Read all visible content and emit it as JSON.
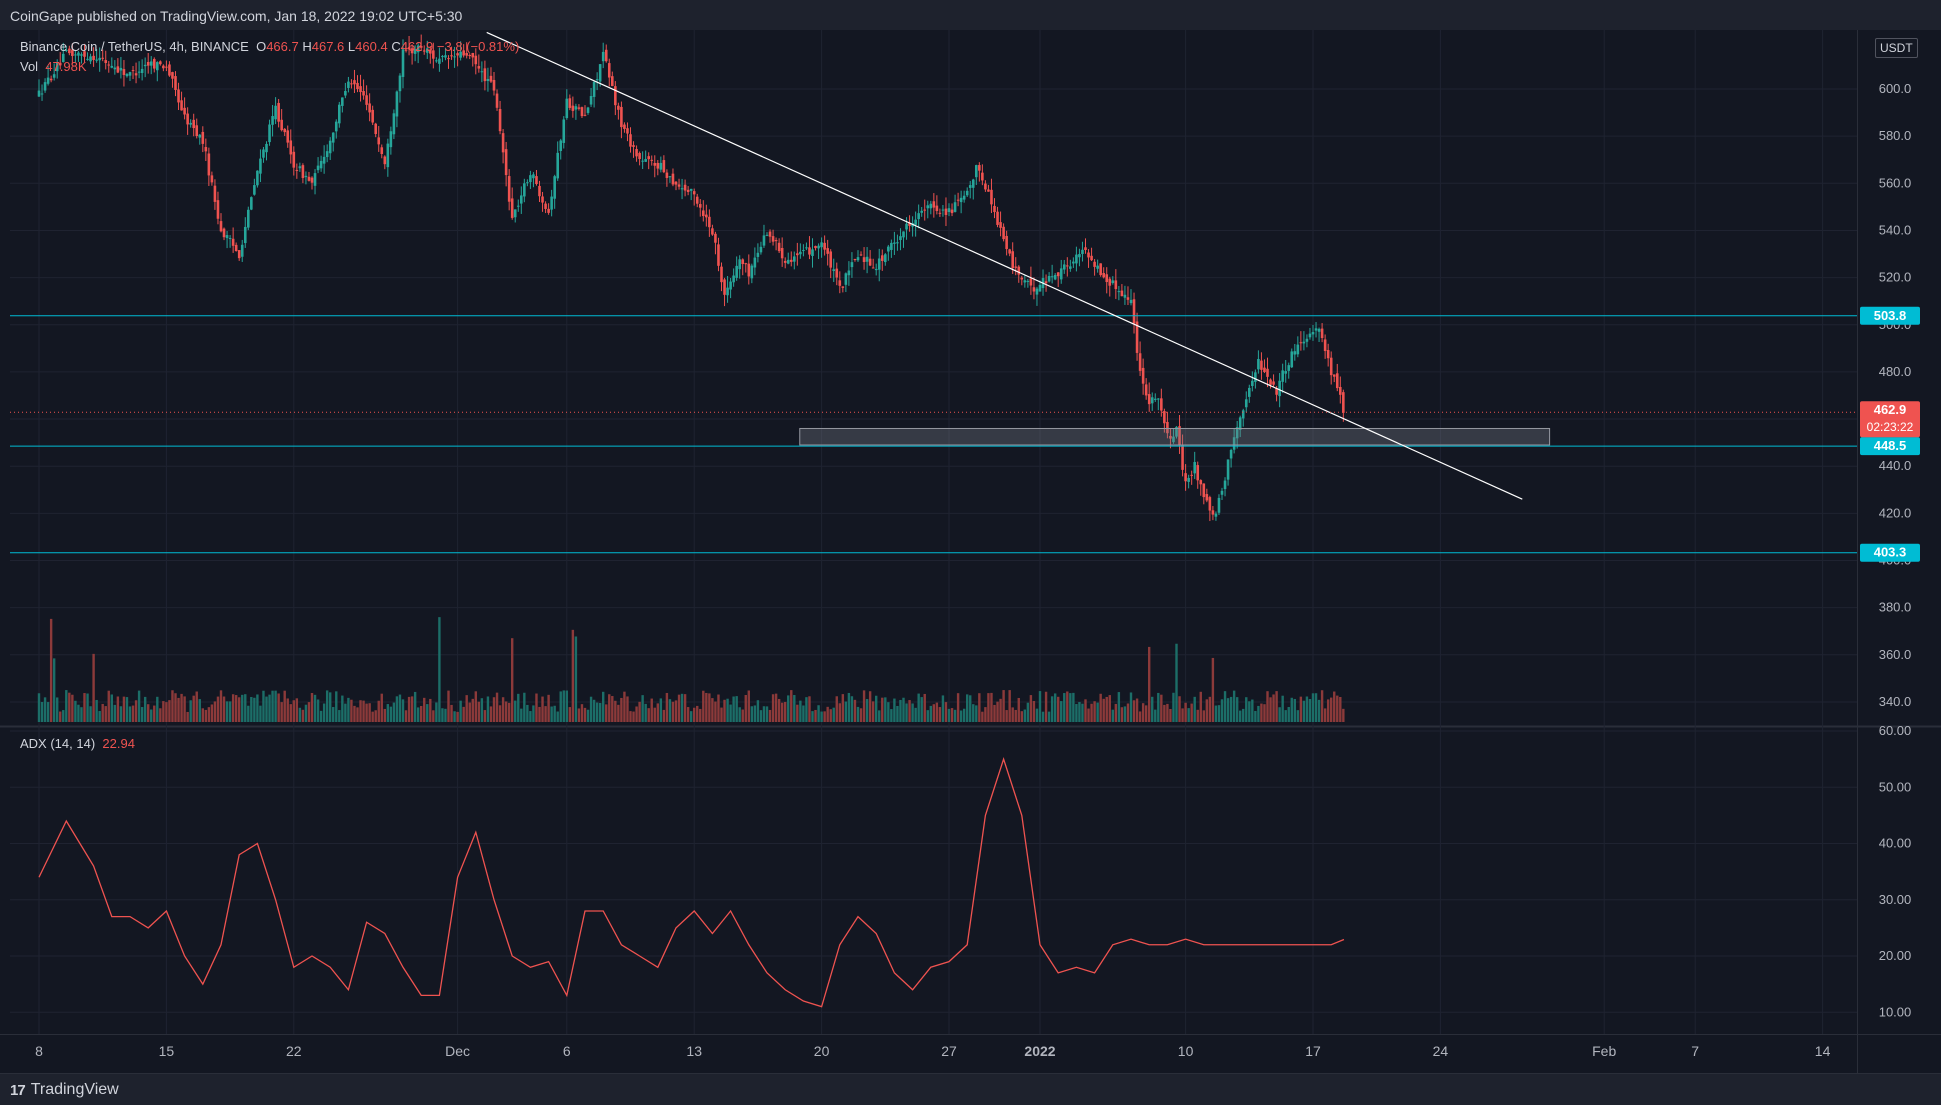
{
  "header": {
    "published": "CoinGape published on TradingView.com, Jan 18, 2022 19:02 UTC+5:30"
  },
  "legend": {
    "symbol": "Binance Coin / TetherUS, 4h, BINANCE",
    "o_label": "O",
    "o": "466.7",
    "h_label": "H",
    "h": "467.6",
    "l_label": "L",
    "l": "460.4",
    "c_label": "C",
    "c": "462.9",
    "change": "−3.8 (−0.81%)",
    "vol_label": "Vol",
    "vol": "47.98K",
    "adx_label": "ADX (14, 14)",
    "adx_value": "22.94"
  },
  "price_axis": {
    "unit": "USDT"
  },
  "badges": {
    "resistance": "503.8",
    "current_price": "462.9",
    "countdown": "02:23:22",
    "support1": "448.5",
    "support2": "403.3"
  },
  "footer": {
    "brand": "TradingView"
  },
  "colors": {
    "background": "#131722",
    "up": "#26a69a",
    "down": "#ef5350",
    "level_line": "#00bcd4",
    "trendline": "#ffffff",
    "adx": "#ef5350"
  },
  "chart_data": [
    {
      "type": "candlestick",
      "timeframe": "4h",
      "ylim": [
        330,
        620
      ],
      "y_ticks": [
        "600.0",
        "580.0",
        "560.0",
        "540.0",
        "520.0",
        "500.0",
        "480.0",
        "460.0",
        "440.0",
        "420.0",
        "400.0",
        "380.0",
        "360.0",
        "340.0"
      ],
      "x_ticks": [
        "8",
        "15",
        "22",
        "Dec",
        "6",
        "13",
        "20",
        "27",
        "2022",
        "10",
        "17",
        "24",
        "Feb",
        "7",
        "14"
      ],
      "x_tick_days": [
        0,
        7,
        14,
        23,
        29,
        36,
        43,
        50,
        55,
        63,
        70,
        77,
        86,
        91,
        98
      ],
      "price_path": [
        {
          "day": 0,
          "price": 598
        },
        {
          "day": 1.5,
          "price": 615
        },
        {
          "day": 3,
          "price": 614
        },
        {
          "day": 5,
          "price": 606
        },
        {
          "day": 6,
          "price": 611
        },
        {
          "day": 7,
          "price": 610
        },
        {
          "day": 8,
          "price": 588
        },
        {
          "day": 9,
          "price": 578
        },
        {
          "day": 10,
          "price": 540
        },
        {
          "day": 11,
          "price": 530
        },
        {
          "day": 12,
          "price": 565
        },
        {
          "day": 13,
          "price": 592
        },
        {
          "day": 14,
          "price": 568
        },
        {
          "day": 15,
          "price": 560
        },
        {
          "day": 16,
          "price": 578
        },
        {
          "day": 17,
          "price": 605
        },
        {
          "day": 18,
          "price": 595
        },
        {
          "day": 19,
          "price": 568
        },
        {
          "day": 20,
          "price": 615
        },
        {
          "day": 21,
          "price": 618
        },
        {
          "day": 22,
          "price": 612
        },
        {
          "day": 23.5,
          "price": 615
        },
        {
          "day": 25,
          "price": 600
        },
        {
          "day": 26,
          "price": 545
        },
        {
          "day": 27,
          "price": 565
        },
        {
          "day": 28,
          "price": 548
        },
        {
          "day": 29,
          "price": 595
        },
        {
          "day": 30,
          "price": 588
        },
        {
          "day": 31,
          "price": 615
        },
        {
          "day": 32,
          "price": 585
        },
        {
          "day": 33,
          "price": 570
        },
        {
          "day": 34,
          "price": 568
        },
        {
          "day": 35,
          "price": 560
        },
        {
          "day": 36,
          "price": 555
        },
        {
          "day": 37,
          "price": 540
        },
        {
          "day": 37.7,
          "price": 512
        },
        {
          "day": 38.5,
          "price": 528
        },
        {
          "day": 39,
          "price": 522
        },
        {
          "day": 40,
          "price": 540
        },
        {
          "day": 41,
          "price": 528
        },
        {
          "day": 42,
          "price": 530
        },
        {
          "day": 43,
          "price": 535
        },
        {
          "day": 44,
          "price": 515
        },
        {
          "day": 45,
          "price": 530
        },
        {
          "day": 46,
          "price": 525
        },
        {
          "day": 47,
          "price": 535
        },
        {
          "day": 48,
          "price": 545
        },
        {
          "day": 49,
          "price": 550
        },
        {
          "day": 50,
          "price": 548
        },
        {
          "day": 51,
          "price": 555
        },
        {
          "day": 51.6,
          "price": 568
        },
        {
          "day": 52.5,
          "price": 548
        },
        {
          "day": 53.5,
          "price": 525
        },
        {
          "day": 54.5,
          "price": 515
        },
        {
          "day": 55.5,
          "price": 520
        },
        {
          "day": 56.5,
          "price": 525
        },
        {
          "day": 57.5,
          "price": 532
        },
        {
          "day": 58.5,
          "price": 520
        },
        {
          "day": 59.5,
          "price": 514
        },
        {
          "day": 60,
          "price": 510
        },
        {
          "day": 60.5,
          "price": 480
        },
        {
          "day": 61,
          "price": 468
        },
        {
          "day": 61.5,
          "price": 470
        },
        {
          "day": 62,
          "price": 452
        },
        {
          "day": 62.5,
          "price": 455
        },
        {
          "day": 63,
          "price": 432
        },
        {
          "day": 63.5,
          "price": 440
        },
        {
          "day": 64,
          "price": 428
        },
        {
          "day": 64.5,
          "price": 418
        },
        {
          "day": 65,
          "price": 428
        },
        {
          "day": 65.5,
          "price": 448
        },
        {
          "day": 66,
          "price": 462
        },
        {
          "day": 66.5,
          "price": 472
        },
        {
          "day": 67,
          "price": 485
        },
        {
          "day": 67.5,
          "price": 478
        },
        {
          "day": 68,
          "price": 472
        },
        {
          "day": 68.5,
          "price": 482
        },
        {
          "day": 69,
          "price": 490
        },
        {
          "day": 69.5,
          "price": 494
        },
        {
          "day": 70,
          "price": 498
        },
        {
          "day": 70.3,
          "price": 500
        },
        {
          "day": 70.7,
          "price": 488
        },
        {
          "day": 71.1,
          "price": 478
        },
        {
          "day": 71.4,
          "price": 472
        },
        {
          "day": 71.7,
          "price": 463
        }
      ],
      "volume_peak_days": [
        0.8,
        3,
        22,
        26,
        29.4,
        61,
        62.5,
        64.5
      ],
      "levels": [
        {
          "name": "resistance",
          "value": 503.8
        },
        {
          "name": "support1",
          "value": 448.5
        },
        {
          "name": "support2",
          "value": 403.3
        }
      ],
      "trendline": [
        {
          "day": 24.6,
          "price": 624
        },
        {
          "day": 81.5,
          "price": 426
        }
      ],
      "zone": {
        "day_start": 41.8,
        "day_end": 83,
        "low": 449,
        "high": 456
      },
      "current_price": 462.9
    },
    {
      "type": "line",
      "name": "ADX (14, 14)",
      "ylim": [
        5,
        60
      ],
      "y_ticks": [
        "60.00",
        "50.00",
        "40.00",
        "30.00",
        "20.00",
        "10.00"
      ],
      "x": [
        0,
        1.5,
        3,
        4,
        5,
        6,
        7,
        8,
        9,
        10,
        11,
        12,
        13,
        14,
        15,
        16,
        17,
        18,
        19,
        20,
        21,
        22,
        23,
        24,
        25,
        26,
        27,
        28,
        29,
        30,
        31,
        32,
        33,
        34,
        35,
        36,
        37,
        38,
        39,
        40,
        41,
        42,
        43,
        44,
        45,
        46,
        47,
        48,
        49,
        50,
        51,
        52,
        53,
        54,
        55,
        56,
        57,
        58,
        59,
        60,
        61,
        62,
        63,
        64,
        65,
        66,
        67,
        68,
        69,
        70,
        71,
        71.7
      ],
      "values": [
        34,
        44,
        36,
        27,
        27,
        25,
        28,
        20,
        15,
        22,
        38,
        40,
        30,
        18,
        20,
        18,
        14,
        26,
        24,
        18,
        13,
        13,
        34,
        42,
        30,
        20,
        18,
        19,
        13,
        28,
        28,
        22,
        20,
        18,
        25,
        28,
        24,
        28,
        22,
        17,
        14,
        12,
        11,
        22,
        27,
        24,
        17,
        14,
        18,
        19,
        22,
        45,
        55,
        45,
        22,
        17,
        18,
        17,
        22,
        23,
        22,
        22,
        23,
        22,
        22,
        22,
        22,
        22,
        22,
        22,
        22,
        22.94
      ]
    }
  ]
}
